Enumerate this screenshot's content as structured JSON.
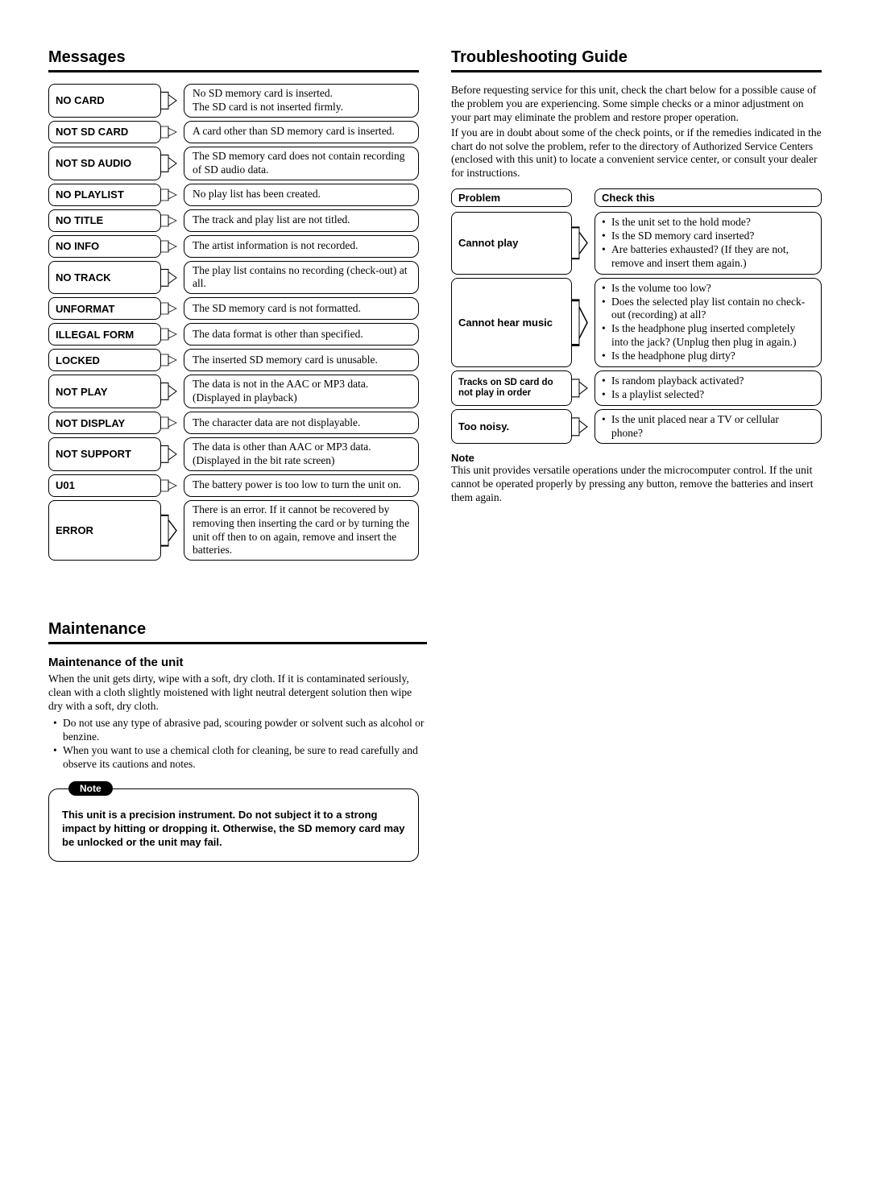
{
  "messages": {
    "title": "Messages",
    "rows": [
      {
        "label": "NO CARD",
        "desc": "No SD memory card is inserted.\nThe SD card is not inserted firmly."
      },
      {
        "label": "NOT SD CARD",
        "desc": "A card other than SD memory card is inserted."
      },
      {
        "label": "NOT SD AUDIO",
        "desc": "The SD memory card does not contain recording of SD audio data."
      },
      {
        "label": "NO PLAYLIST",
        "desc": "No play list has been created."
      },
      {
        "label": "NO TITLE",
        "desc": "The track and play list are not titled."
      },
      {
        "label": "NO INFO",
        "desc": "The artist information is not recorded."
      },
      {
        "label": "NO TRACK",
        "desc": "The play list contains no recording (check-out) at all."
      },
      {
        "label": "UNFORMAT",
        "desc": "The SD memory card is not formatted."
      },
      {
        "label": "ILLEGAL FORM",
        "desc": "The data format is other than specified."
      },
      {
        "label": "LOCKED",
        "desc": "The inserted SD memory card is unusable."
      },
      {
        "label": "NOT PLAY",
        "desc": "The data is not in the AAC or MP3 data. (Displayed in playback)"
      },
      {
        "label": "NOT DISPLAY",
        "desc": "The character data are not displayable."
      },
      {
        "label": "NOT SUPPORT",
        "desc": "The data is other than AAC or MP3 data. (Displayed in the bit rate screen)"
      },
      {
        "label": "U01",
        "desc": "The battery power is too low to turn the unit on."
      },
      {
        "label": "ERROR",
        "desc": "There is an error. If it cannot be recovered by removing then inserting the card or by turning the unit off then to on again, remove and insert the batteries."
      }
    ]
  },
  "troubleshooting": {
    "title": "Troubleshooting Guide",
    "intro1": "Before requesting service for this unit, check the chart below for a possible cause of the problem you are experiencing. Some simple checks or a minor adjustment on your part may eliminate the problem and restore proper operation.",
    "intro2": "If you are in doubt about some of the check points, or if the remedies indicated in the chart do not solve the problem, refer to the directory of Authorized Service Centers (enclosed with this unit) to locate a convenient service center, or consult your dealer for instructions.",
    "head_problem": "Problem",
    "head_check": "Check this",
    "rows": [
      {
        "problem": "Cannot play",
        "checks": [
          "Is the unit set to the hold mode?",
          "Is the SD memory card inserted?",
          "Are batteries exhausted? (If they are not, remove and insert them again.)"
        ]
      },
      {
        "problem": "Cannot hear music",
        "checks": [
          "Is the volume too low?",
          "Does the selected play list contain no check-out (recording) at all?",
          "Is the headphone plug inserted completely into the jack? (Unplug then plug in again.)",
          "Is the headphone plug dirty?"
        ]
      },
      {
        "problem": "Tracks on SD card do not play in order",
        "small": true,
        "checks": [
          "Is random playback activated?",
          "Is a playlist selected?"
        ]
      },
      {
        "problem": "Too noisy.",
        "checks": [
          "Is the unit placed near a TV or cellular phone?"
        ]
      }
    ],
    "note_head": "Note",
    "note_text": "This unit provides versatile operations under the microcomputer control. If the unit cannot be operated properly by pressing any button, remove the batteries and insert them again."
  },
  "maintenance": {
    "title": "Maintenance",
    "sub": "Maintenance of the unit",
    "para": "When the unit gets dirty, wipe with a soft, dry cloth. If it is contaminated seriously, clean with a cloth slightly moistened with light neutral detergent solution then wipe dry with a soft, dry cloth.",
    "bullets": [
      "Do not use any type of abrasive pad, scouring powder or solvent such as alcohol or benzine.",
      "When you want to use a chemical cloth for cleaning, be sure to read carefully and observe its cautions and notes."
    ],
    "note_tab": "Note",
    "note_box": "This unit is a precision instrument. Do not subject it to a strong impact by hitting or dropping it. Otherwise, the SD memory card may be unlocked or the unit may fail."
  }
}
